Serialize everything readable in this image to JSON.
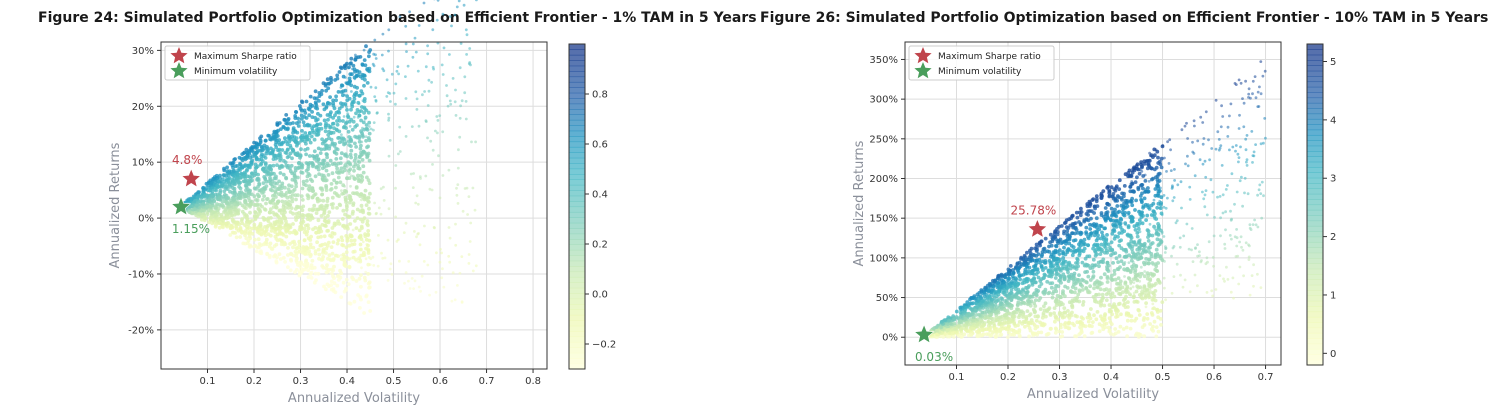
{
  "chart_data": [
    {
      "type": "scatter",
      "title": "Figure 24: Simulated Portfolio Optimization based on Efficient Frontier - 1% TAM in 5 Years",
      "xlabel": "Annualized Volatility",
      "ylabel": "Annualized Returns",
      "xlim": [
        0.0,
        0.83
      ],
      "ylim": [
        -0.27,
        0.315
      ],
      "xticks": [
        0.1,
        0.2,
        0.3,
        0.4,
        0.5,
        0.6,
        0.7,
        0.8
      ],
      "xtick_labels": [
        "0.1",
        "0.2",
        "0.3",
        "0.4",
        "0.5",
        "0.6",
        "0.7",
        "0.8"
      ],
      "yticks": [
        -0.2,
        -0.1,
        0.0,
        0.1,
        0.2,
        0.3
      ],
      "ytick_labels": [
        "-20%",
        "-10%",
        "0%",
        "10%",
        "20%",
        "30%"
      ],
      "grid": true,
      "legend_position": "top-left",
      "legend": [
        "Maximum Sharpe ratio",
        "Minimum volatility"
      ],
      "colorbar": {
        "min": -0.3,
        "max": 1.0,
        "ticks": [
          -0.2,
          0.0,
          0.2,
          0.4,
          0.6,
          0.8
        ],
        "tick_labels": [
          "−0.2",
          "0.0",
          "0.2",
          "0.4",
          "0.6",
          "0.8"
        ]
      },
      "cloud": {
        "min_vol": 0.04,
        "origin_return": 0.02,
        "upper_slope": 0.72,
        "lower_slope": -0.48,
        "dense_max_vol": 0.45,
        "sparse_max_vol": 0.68
      },
      "max_sharpe": {
        "x": 0.065,
        "y": 0.07,
        "label": "4.8%"
      },
      "min_volatility": {
        "x": 0.043,
        "y": 0.02,
        "label": "1.15%"
      },
      "colors": {
        "max_sharpe": "#c0444c",
        "min_vol": "#4a9e5c"
      }
    },
    {
      "type": "scatter",
      "title": "Figure 26: Simulated Portfolio Optimization based on Efficient Frontier - 10% TAM in 5 Years",
      "xlabel": "Annualized Volatility",
      "ylabel": "Annualized Returns",
      "xlim": [
        0.0,
        0.73
      ],
      "ylim": [
        -0.35,
        3.72
      ],
      "xticks": [
        0.1,
        0.2,
        0.3,
        0.4,
        0.5,
        0.6,
        0.7
      ],
      "xtick_labels": [
        "0.1",
        "0.2",
        "0.3",
        "0.4",
        "0.5",
        "0.6",
        "0.7"
      ],
      "yticks": [
        0.0,
        0.5,
        1.0,
        1.5,
        2.0,
        2.5,
        3.0,
        3.5
      ],
      "ytick_labels": [
        "0%",
        "50%",
        "100%",
        "150%",
        "200%",
        "250%",
        "300%",
        "350%"
      ],
      "grid": true,
      "legend_position": "top-left",
      "legend": [
        "Maximum Sharpe ratio",
        "Minimum volatility"
      ],
      "colorbar": {
        "min": -0.2,
        "max": 5.3,
        "ticks": [
          0,
          1,
          2,
          3,
          4,
          5
        ],
        "tick_labels": [
          "0",
          "1",
          "2",
          "3",
          "4",
          "5"
        ]
      },
      "cloud": {
        "min_vol": 0.035,
        "origin_return": 0.0,
        "upper_slope": 5.3,
        "lower_slope": 0.0,
        "dense_max_vol": 0.5,
        "sparse_max_vol": 0.7
      },
      "max_sharpe": {
        "x": 0.257,
        "y": 1.36,
        "label": "25.78%"
      },
      "min_volatility": {
        "x": 0.037,
        "y": 0.03,
        "label": "0.03%"
      },
      "colors": {
        "max_sharpe": "#c0444c",
        "min_vol": "#4a9e5c"
      }
    }
  ]
}
